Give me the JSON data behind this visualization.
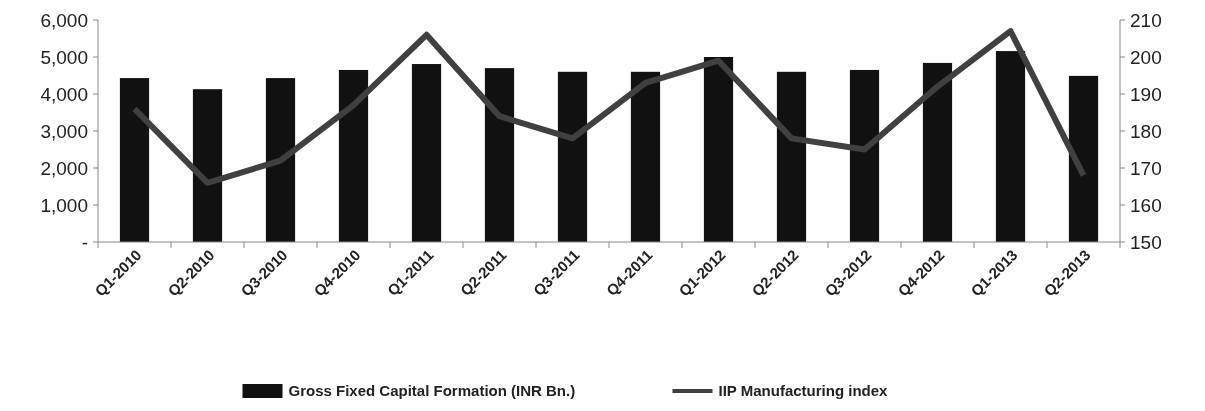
{
  "chart_data": {
    "type": "bar",
    "categories": [
      "Q1-2010",
      "Q2-2010",
      "Q3-2010",
      "Q4-2010",
      "Q1-2011",
      "Q2-2011",
      "Q3-2011",
      "Q4-2011",
      "Q1-2012",
      "Q2-2012",
      "Q3-2012",
      "Q4-2012",
      "Q1-2013",
      "Q2-2013"
    ],
    "series": [
      {
        "name": "Gross Fixed Capital Formation (INR Bn.)",
        "color": "#111111",
        "values": [
          4430,
          4130,
          4430,
          4650,
          4810,
          4700,
          4600,
          4600,
          5000,
          4600,
          4650,
          4840,
          5160,
          4490
        ]
      },
      {
        "name": "IIP Manufacturing index",
        "type": "line",
        "axis": "y2",
        "color": "#404040",
        "values": [
          186,
          166,
          172,
          187,
          206,
          184,
          178,
          193,
          199,
          178,
          175,
          192,
          207,
          168
        ]
      }
    ],
    "ylim": [
      0,
      6000
    ],
    "yticks": [
      {
        "value": 0,
        "label": "-"
      },
      {
        "value": 1000,
        "label": "1,000"
      },
      {
        "value": 2000,
        "label": "2,000"
      },
      {
        "value": 3000,
        "label": "3,000"
      },
      {
        "value": 4000,
        "label": "4,000"
      },
      {
        "value": 5000,
        "label": "5,000"
      },
      {
        "value": 6000,
        "label": "6,000"
      }
    ],
    "y2lim": [
      150,
      210
    ],
    "y2ticks": [
      150,
      160,
      170,
      180,
      190,
      200,
      210
    ],
    "grid": false,
    "legend": "bottom",
    "marker": "none"
  }
}
